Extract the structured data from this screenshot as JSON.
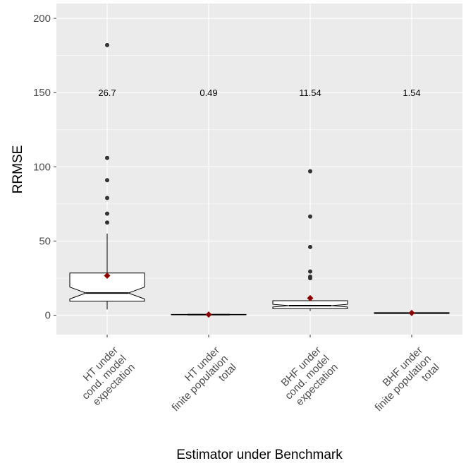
{
  "chart_data": {
    "type": "boxplot",
    "xlabel": "Estimator under Benchmark",
    "ylabel": "RRMSE",
    "ylim": [
      -13,
      210
    ],
    "yticks": [
      0,
      50,
      100,
      150,
      200
    ],
    "grid": true,
    "categories": [
      [
        "HT under",
        "cond. model",
        "expectation"
      ],
      [
        "HT under",
        "finite population",
        "total"
      ],
      [
        "BHF under",
        "cond. model",
        "expectation"
      ],
      [
        "BHF under",
        "finite population",
        "total"
      ]
    ],
    "annotations": [
      "26.7",
      "0.49",
      "11.54",
      "1.54"
    ],
    "annotation_y": 150,
    "boxes": [
      {
        "whisker_low": 4,
        "q1": 9.5,
        "median": 15,
        "q3": 28.5,
        "whisker_high": 55,
        "notch_low": 11,
        "notch_high": 19,
        "mean": 26.7,
        "outliers": [
          182,
          106,
          91,
          79,
          68.5,
          62.5
        ]
      },
      {
        "whisker_low": 0.2,
        "q1": 0.3,
        "median": 0.45,
        "q3": 0.6,
        "whisker_high": 0.9,
        "notch_low": 0.4,
        "notch_high": 0.5,
        "mean": 0.49,
        "outliers": []
      },
      {
        "whisker_low": 3,
        "q1": 4.5,
        "median": 6.5,
        "q3": 9.8,
        "whisker_high": 13,
        "notch_low": 5.6,
        "notch_high": 7.4,
        "mean": 11.54,
        "outliers": [
          97,
          66.5,
          46,
          29.5,
          26,
          25
        ]
      },
      {
        "whisker_low": 1.0,
        "q1": 1.2,
        "median": 1.5,
        "q3": 1.8,
        "whisker_high": 2.2,
        "notch_low": 1.4,
        "notch_high": 1.6,
        "mean": 1.54,
        "outliers": []
      }
    ],
    "colors": {
      "panel_bg": "#ebebeb",
      "grid_major": "#ffffff",
      "box_fill": "#ffffff",
      "box_stroke": "#000000",
      "outlier": "#333333",
      "mean_marker": "#8b0000"
    }
  }
}
